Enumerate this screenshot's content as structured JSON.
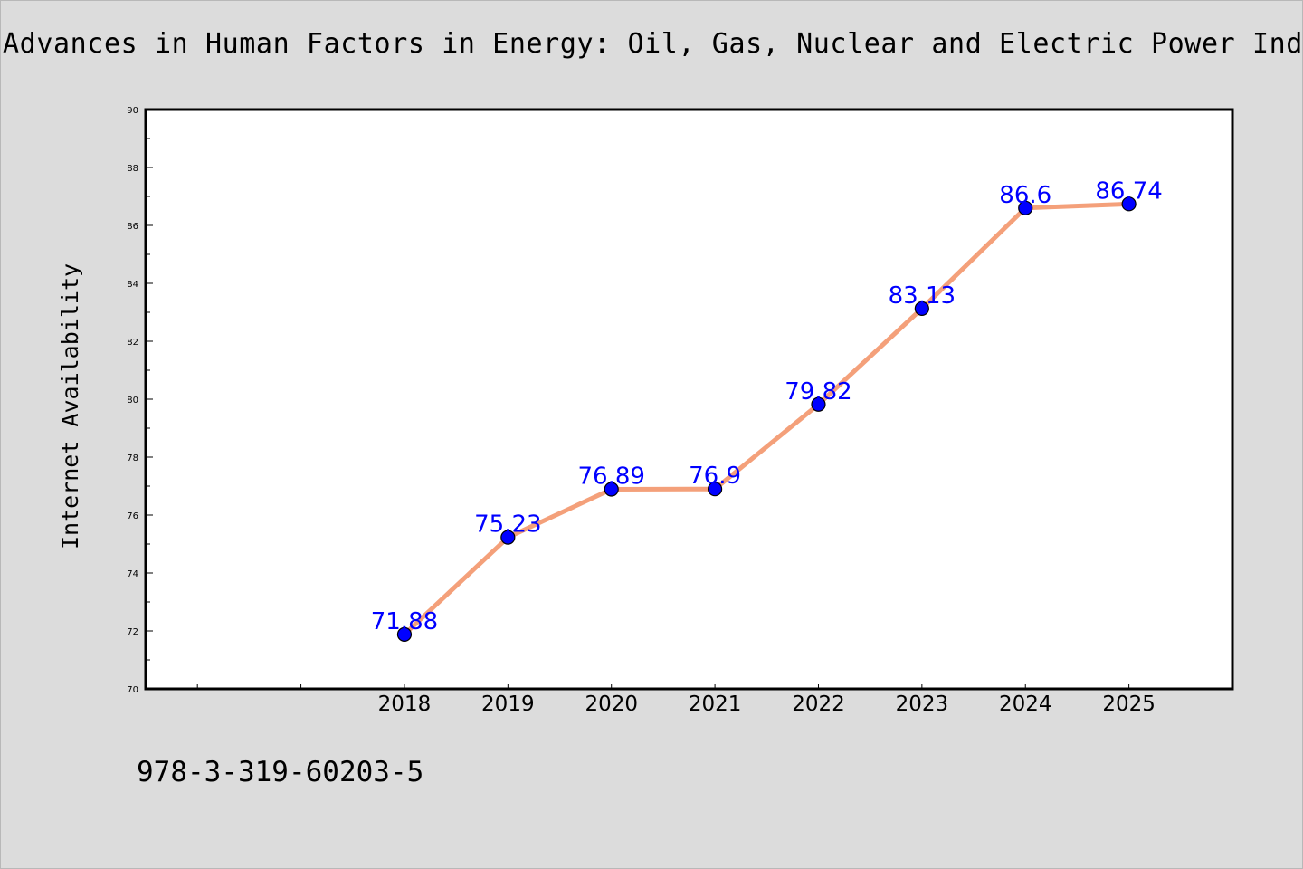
{
  "title": "Advances in Human Factors in Energy: Oil, Gas, Nuclear and Electric Power Indust",
  "footer_text": "978-3-319-60203-5",
  "colors": {
    "background": "#dcdcdc",
    "plot_background": "#ffffff",
    "line": "#f4a07a",
    "marker": "#0000ff",
    "data_label": "#0000ff"
  },
  "chart_data": {
    "type": "line",
    "title": "Advances in Human Factors in Energy: Oil, Gas, Nuclear and Electric Power Indust",
    "xlabel": "",
    "ylabel": "Internet Availability",
    "x_tick_positions": [
      2016,
      2017,
      2018,
      2019,
      2020,
      2021,
      2022,
      2023,
      2024,
      2025
    ],
    "x": [
      "2018",
      "2019",
      "2020",
      "2021",
      "2022",
      "2023",
      "2024",
      "2025"
    ],
    "x_values": [
      2018,
      2019,
      2020,
      2021,
      2022,
      2023,
      2024,
      2025
    ],
    "values": [
      71.88,
      75.23,
      76.89,
      76.9,
      79.82,
      83.13,
      86.6,
      86.74
    ],
    "data_labels": [
      "71.88",
      "75.23",
      "76.89",
      "76.9",
      "79.82",
      "83.13",
      "86.6",
      "86.74"
    ],
    "xlim": [
      2015.5,
      2026
    ],
    "ylim": [
      70,
      90
    ],
    "y_ticks": [
      "70",
      "72",
      "74",
      "76",
      "78",
      "80",
      "82",
      "84",
      "86",
      "88",
      "90"
    ],
    "grid": false,
    "legend": "none"
  }
}
